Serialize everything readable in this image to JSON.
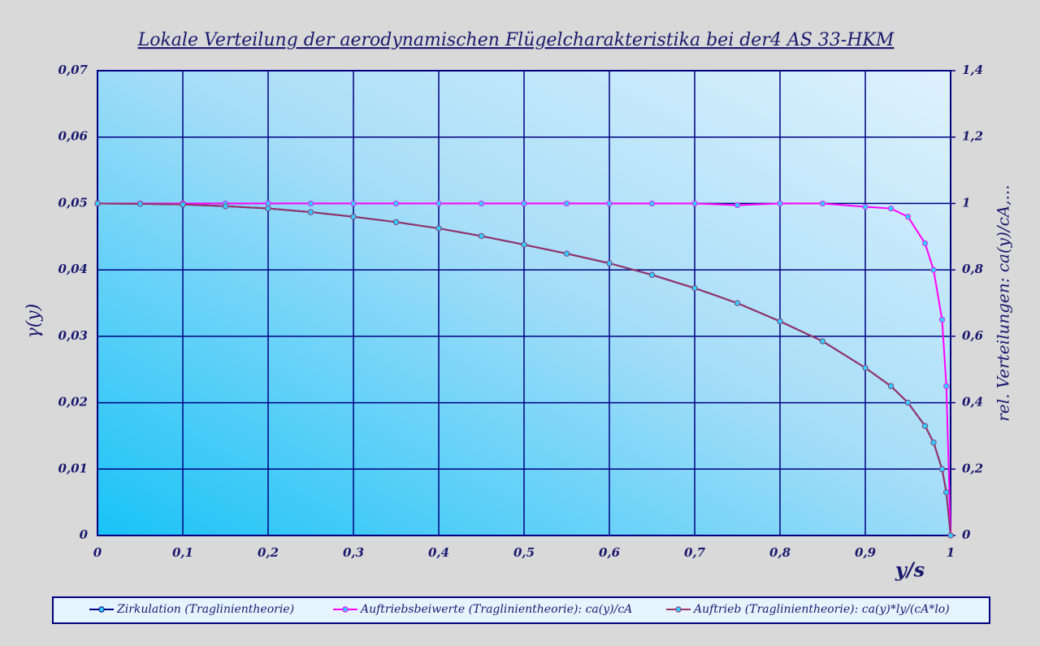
{
  "chart_data": {
    "type": "line",
    "title": "Lokale Verteilung der aerodynamischen Flügelcharakteristika bei der4 AS 33-HKM",
    "x_label": "y/s",
    "y_label": "γ(y)",
    "y2_label": "rel. Verteilungen: ca(y)/cA,...",
    "x": [
      0,
      0.05,
      0.1,
      0.15,
      0.2,
      0.25,
      0.3,
      0.35,
      0.4,
      0.45,
      0.5,
      0.55,
      0.6,
      0.65,
      0.7,
      0.75,
      0.8,
      0.85,
      0.9,
      0.93,
      0.95,
      0.97,
      0.98,
      0.99,
      0.995,
      1
    ],
    "series": [
      {
        "name": "Zirkulation (Traglinientheorie)",
        "color": "#000080",
        "axis": "y",
        "values": [
          0.05,
          0.04995,
          0.04985,
          0.0496,
          0.04925,
          0.0487,
          0.048,
          0.0472,
          0.04625,
          0.0451,
          0.0438,
          0.04245,
          0.041,
          0.03925,
          0.03725,
          0.035,
          0.03225,
          0.02925,
          0.02525,
          0.0225,
          0.02,
          0.0165,
          0.014,
          0.01,
          0.0065,
          0
        ]
      },
      {
        "name": "Auftriebsbeiwerte (Traglinientheorie): ca(y)/cA",
        "color": "#ff00ff",
        "axis": "y2",
        "values": [
          1,
          1,
          1,
          1,
          1,
          1,
          1,
          1,
          1,
          1,
          1,
          1,
          1,
          1,
          1,
          0.995,
          1,
          1,
          0.99,
          0.985,
          0.96,
          0.88,
          0.8,
          0.65,
          0.45,
          0
        ]
      },
      {
        "name": "Auftrieb (Traglinientheorie): ca(y)*ly/(cA*lo)",
        "color": "#993366",
        "axis": "y2",
        "values": [
          1,
          0.999,
          0.997,
          0.992,
          0.985,
          0.974,
          0.96,
          0.944,
          0.925,
          0.902,
          0.876,
          0.849,
          0.82,
          0.785,
          0.745,
          0.7,
          0.645,
          0.585,
          0.505,
          0.45,
          0.4,
          0.33,
          0.28,
          0.2,
          0.13,
          0
        ]
      }
    ],
    "marker_color": "#33ccff",
    "xlim": [
      0,
      1
    ],
    "xticks": [
      0,
      {
        "value": 0.1,
        "label": "0,1"
      },
      {
        "value": 0.2,
        "label": "0,2"
      },
      {
        "value": 0.3,
        "label": "0,3"
      },
      {
        "value": 0.4,
        "label": "0,4"
      },
      {
        "value": 0.5,
        "label": "0,5"
      },
      {
        "value": 0.6,
        "label": "0,6"
      },
      {
        "value": 0.7,
        "label": "0,7"
      },
      {
        "value": 0.8,
        "label": "0,8"
      },
      {
        "value": 0.9,
        "label": "0,9"
      },
      1
    ],
    "ylim": [
      0,
      0.07
    ],
    "yticks": [
      0,
      {
        "value": 0.01,
        "label": "0,01"
      },
      {
        "value": 0.02,
        "label": "0,02"
      },
      {
        "value": 0.03,
        "label": "0,03"
      },
      {
        "value": 0.04,
        "label": "0,04"
      },
      {
        "value": 0.05,
        "label": "0,05"
      },
      {
        "value": 0.06,
        "label": "0,06"
      },
      {
        "value": 0.07,
        "label": "0,07"
      }
    ],
    "y2lim": [
      0,
      1.4
    ],
    "y2ticks": [
      0,
      {
        "value": 0.2,
        "label": "0,2"
      },
      {
        "value": 0.4,
        "label": "0,4"
      },
      {
        "value": 0.6,
        "label": "0,6"
      },
      {
        "value": 0.8,
        "label": "0,8"
      },
      1,
      {
        "value": 1.2,
        "label": "1,2"
      },
      {
        "value": 1.4,
        "label": "1,4"
      }
    ],
    "grid": true
  }
}
